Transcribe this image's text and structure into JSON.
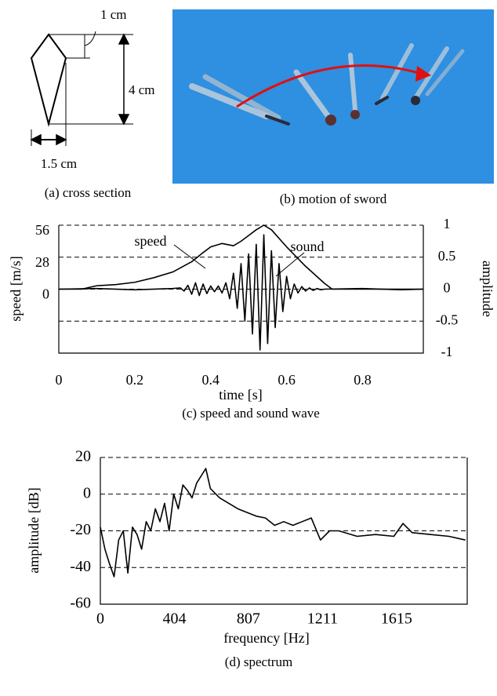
{
  "figure_a": {
    "labels": [
      "1 cm",
      "4 cm",
      "1.5 cm"
    ],
    "caption": "(a) cross section"
  },
  "figure_b": {
    "caption": "(b) motion of sword"
  },
  "chart_data": [
    {
      "type": "line",
      "caption": "(c) speed and sound wave",
      "xlabel": "time [s]",
      "ylabel": "speed [m/s]",
      "y2label": "amplitude",
      "xlim": [
        0,
        0.96
      ],
      "xticks": [
        0,
        0.2,
        0.4,
        0.6,
        0.8
      ],
      "ylim": [
        -56,
        56
      ],
      "yticks": [
        0,
        28,
        56
      ],
      "y2lim": [
        -1,
        1
      ],
      "y2ticks": [
        -1,
        -0.5,
        0,
        0.5,
        1
      ],
      "grid": "y2",
      "series": [
        {
          "name": "speed",
          "color": "#000000",
          "x": [
            0,
            0.06,
            0.1,
            0.15,
            0.2,
            0.25,
            0.3,
            0.35,
            0.38,
            0.4,
            0.43,
            0.46,
            0.48,
            0.5,
            0.52,
            0.54,
            0.56,
            0.6,
            0.65,
            0.7,
            0.72,
            0.9,
            0.96
          ],
          "values": [
            0,
            0,
            3,
            4,
            6,
            10,
            15,
            24,
            32,
            37,
            40,
            38,
            42,
            47,
            52,
            56,
            52,
            37,
            20,
            5,
            0,
            0,
            0
          ]
        },
        {
          "name": "sound",
          "color": "#000000",
          "axis": "y2",
          "x": [
            0,
            0.1,
            0.2,
            0.3,
            0.32,
            0.33,
            0.34,
            0.35,
            0.36,
            0.37,
            0.38,
            0.39,
            0.4,
            0.41,
            0.42,
            0.43,
            0.44,
            0.45,
            0.46,
            0.47,
            0.48,
            0.49,
            0.5,
            0.51,
            0.52,
            0.53,
            0.54,
            0.55,
            0.56,
            0.57,
            0.58,
            0.59,
            0.6,
            0.61,
            0.62,
            0.63,
            0.64,
            0.65,
            0.66,
            0.67,
            0.68,
            0.69,
            0.7,
            0.8,
            0.9,
            0.96
          ],
          "values": [
            0,
            0.01,
            -0.01,
            0.01,
            0.02,
            -0.03,
            0.06,
            -0.08,
            0.1,
            -0.1,
            0.08,
            -0.07,
            0.05,
            -0.04,
            0.05,
            -0.06,
            0.1,
            -0.15,
            0.25,
            -0.3,
            0.4,
            -0.5,
            0.55,
            -0.7,
            0.7,
            -0.95,
            0.85,
            -0.85,
            0.6,
            -0.6,
            0.4,
            -0.35,
            0.2,
            -0.15,
            0.08,
            -0.06,
            0.04,
            -0.03,
            0.02,
            -0.02,
            0.01,
            -0.01,
            0,
            0.01,
            -0.01,
            0
          ]
        }
      ]
    },
    {
      "type": "line",
      "caption": "(d) spectrum",
      "xlabel": "frequency [Hz]",
      "ylabel": "amplitude [dB]",
      "xlim": [
        0,
        2000
      ],
      "xticks": [
        0,
        404,
        807,
        1211,
        1615
      ],
      "ylim": [
        -60,
        20
      ],
      "yticks": [
        -60,
        -40,
        -20,
        0,
        20
      ],
      "grid": "y",
      "color": "#000000",
      "x": [
        0,
        25,
        50,
        75,
        100,
        125,
        150,
        175,
        200,
        225,
        250,
        275,
        300,
        325,
        350,
        375,
        400,
        425,
        450,
        475,
        500,
        525,
        550,
        575,
        600,
        650,
        700,
        750,
        800,
        850,
        900,
        950,
        1000,
        1050,
        1100,
        1150,
        1200,
        1250,
        1300,
        1400,
        1500,
        1600,
        1650,
        1700,
        1800,
        1900,
        1990
      ],
      "values": [
        -18,
        -30,
        -38,
        -45,
        -25,
        -20,
        -43,
        -18,
        -22,
        -30,
        -15,
        -20,
        -8,
        -15,
        -5,
        -20,
        0,
        -8,
        5,
        2,
        -2,
        6,
        10,
        14,
        3,
        -2,
        -5,
        -8,
        -10,
        -12,
        -13,
        -17,
        -15,
        -17,
        -15,
        -13,
        -25,
        -20,
        -20,
        -23,
        -22,
        -23,
        -16,
        -21,
        -22,
        -23,
        -25
      ]
    }
  ]
}
